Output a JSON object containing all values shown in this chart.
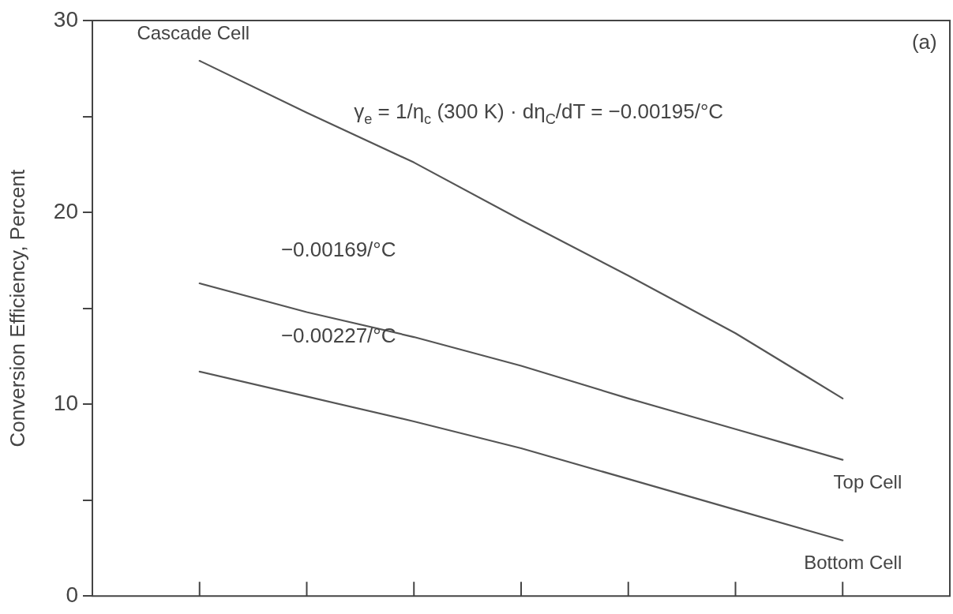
{
  "chart_data": {
    "type": "line",
    "ylabel": "Conversion Efficiency, Percent",
    "categories": [
      null,
      null,
      null,
      null,
      null,
      null,
      null,
      null,
      null
    ],
    "ylim": [
      0,
      30
    ],
    "yticks": [
      0,
      {
        "value": 5,
        "label": null
      },
      10,
      {
        "value": 15,
        "label": null
      },
      20,
      {
        "value": 25,
        "label": null
      },
      30
    ],
    "tick_labels": "y",
    "grid": false,
    "legend": false,
    "series": [
      {
        "name": "Cascade Cell",
        "color": "#555555",
        "values": [
          null,
          27.9,
          25.2,
          22.6,
          19.6,
          16.7,
          13.7,
          10.3,
          null
        ]
      },
      {
        "name": "Top Cell",
        "color": "#555555",
        "values": [
          null,
          16.3,
          14.8,
          13.5,
          12.0,
          10.3,
          8.7,
          7.1,
          null
        ]
      },
      {
        "name": "Bottom Cell",
        "color": "#555555",
        "values": [
          null,
          11.7,
          10.4,
          9.1,
          7.7,
          6.1,
          4.5,
          2.9,
          null
        ]
      }
    ],
    "annotations": [
      "(a)",
      "γ$_{e}$ = 1/η$_{c}$ (300 K) · dη$_{C}$/dT = −0.00195/°C",
      "−0.00169/°C",
      "−0.00227/°C"
    ]
  }
}
